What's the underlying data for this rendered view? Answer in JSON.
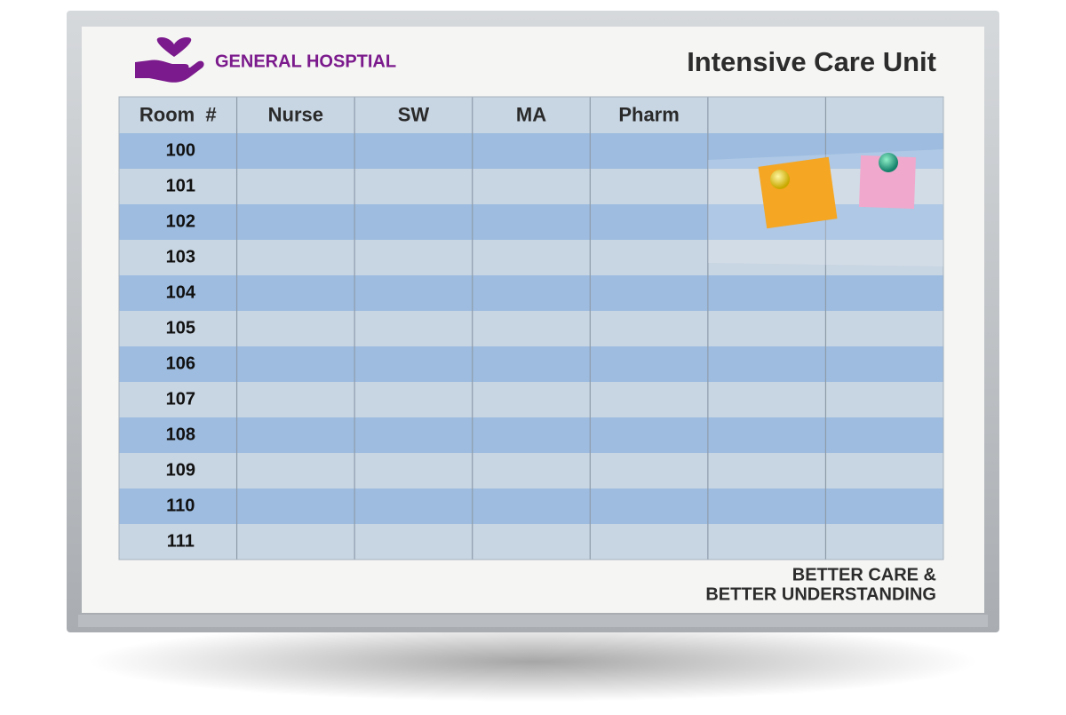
{
  "header": {
    "org": "GENERAL HOSPTIAL",
    "title": "Intensive Care Unit"
  },
  "table": {
    "columns": [
      "Room  #",
      "Nurse",
      "SW",
      "MA",
      "Pharm"
    ],
    "rows": [
      "100",
      "101",
      "102",
      "103",
      "104",
      "105",
      "106",
      "107",
      "108",
      "109",
      "110",
      "111"
    ]
  },
  "footer": {
    "lines": [
      "BETTER CARE &",
      "BETTER UNDERSTANDING"
    ]
  }
}
